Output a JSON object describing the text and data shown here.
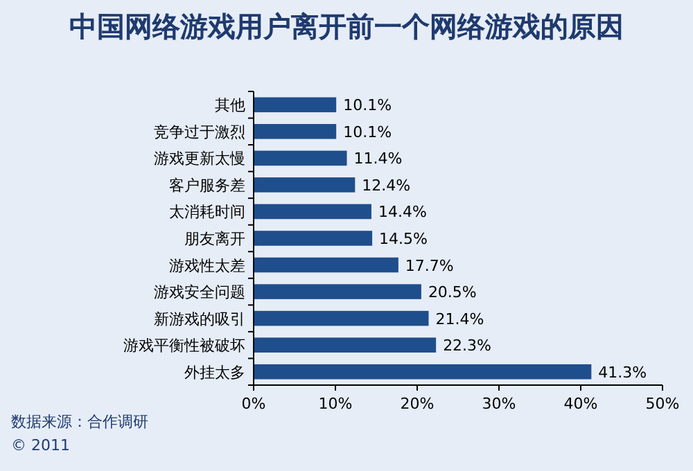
{
  "chart_data": {
    "type": "bar",
    "orientation": "horizontal",
    "title": "中国网络游戏用户离开前一个网络游戏的原因",
    "categories": [
      "其他",
      "竞争过于激烈",
      "游戏更新太慢",
      "客户服务差",
      "太消耗时间",
      "朋友离开",
      "游戏性太差",
      "游戏安全问题",
      "新游戏的吸引",
      "游戏平衡性被破坏",
      "外挂太多"
    ],
    "values": [
      10.1,
      10.1,
      11.4,
      12.4,
      14.4,
      14.5,
      17.7,
      20.5,
      21.4,
      22.3,
      41.3
    ],
    "value_labels": [
      "10.1%",
      "10.1%",
      "11.4%",
      "12.4%",
      "14.4%",
      "14.5%",
      "17.7%",
      "20.5%",
      "21.4%",
      "22.3%",
      "41.3%"
    ],
    "color": "#1f4e8c",
    "xlim": [
      0,
      50
    ],
    "xticks": [
      {
        "value": 0,
        "label": "0%"
      },
      {
        "value": 10,
        "label": "10%"
      },
      {
        "value": 20,
        "label": "20%"
      },
      {
        "value": 30,
        "label": "30%"
      },
      {
        "value": 40,
        "label": "40%"
      },
      {
        "value": 50,
        "label": "50%"
      }
    ],
    "grid": false,
    "annotations": [
      "数据来源：合作调研",
      "© 2011"
    ]
  }
}
